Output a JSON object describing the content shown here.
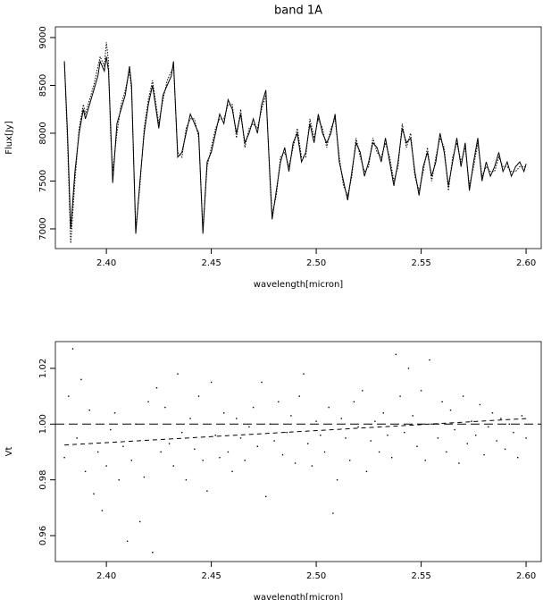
{
  "chart_data": [
    {
      "type": "line",
      "title": "band 1A",
      "xlabel": "wavelength[micron]",
      "ylabel": "Flux[Jy]",
      "xlim": [
        2.3757,
        2.6072
      ],
      "ylim": [
        6794,
        9112
      ],
      "xticks": [
        {
          "value": 2.4,
          "label": "2.40"
        },
        {
          "value": 2.45,
          "label": "2.45"
        },
        {
          "value": 2.5,
          "label": "2.50"
        },
        {
          "value": 2.55,
          "label": "2.55"
        },
        {
          "value": 2.6,
          "label": "2.60"
        }
      ],
      "yticks": [
        7000,
        7500,
        8000,
        8500,
        9000
      ],
      "x": [
        2.38,
        2.3815,
        2.383,
        2.385,
        2.387,
        2.389,
        2.39,
        2.392,
        2.394,
        2.396,
        2.397,
        2.399,
        2.4,
        2.401,
        2.402,
        2.403,
        2.405,
        2.407,
        2.409,
        2.411,
        2.412,
        2.414,
        2.416,
        2.418,
        2.42,
        2.422,
        2.424,
        2.425,
        2.427,
        2.429,
        2.431,
        2.432,
        2.434,
        2.436,
        2.438,
        2.44,
        2.442,
        2.444,
        2.446,
        2.448,
        2.45,
        2.452,
        2.454,
        2.456,
        2.458,
        2.46,
        2.462,
        2.464,
        2.466,
        2.468,
        2.47,
        2.472,
        2.474,
        2.476,
        2.478,
        2.479,
        2.481,
        2.483,
        2.485,
        2.487,
        2.489,
        2.491,
        2.493,
        2.495,
        2.497,
        2.499,
        2.501,
        2.503,
        2.505,
        2.507,
        2.509,
        2.511,
        2.513,
        2.515,
        2.517,
        2.519,
        2.521,
        2.523,
        2.525,
        2.527,
        2.529,
        2.531,
        2.533,
        2.535,
        2.537,
        2.539,
        2.541,
        2.543,
        2.545,
        2.547,
        2.549,
        2.551,
        2.553,
        2.555,
        2.557,
        2.559,
        2.561,
        2.563,
        2.565,
        2.567,
        2.569,
        2.571,
        2.573,
        2.575,
        2.577,
        2.579,
        2.581,
        2.583,
        2.585,
        2.587,
        2.589,
        2.591,
        2.593,
        2.595,
        2.597,
        2.599,
        2.6
      ],
      "series": [
        {
          "color": "#000000",
          "dash": "solid",
          "values": [
            8750,
            8000,
            7000,
            7600,
            8000,
            8250,
            8150,
            8300,
            8450,
            8600,
            8750,
            8650,
            8800,
            8650,
            8100,
            7480,
            8100,
            8250,
            8400,
            8700,
            8500,
            6950,
            7500,
            8000,
            8300,
            8500,
            8200,
            8050,
            8400,
            8500,
            8600,
            8750,
            7750,
            7800,
            8000,
            8200,
            8100,
            8000,
            6950,
            7700,
            7800,
            8000,
            8200,
            8100,
            8350,
            8250,
            8000,
            8200,
            7900,
            8000,
            8150,
            8000,
            8300,
            8450,
            7500,
            7100,
            7400,
            7700,
            7850,
            7600,
            7900,
            8000,
            7700,
            7800,
            8100,
            7900,
            8200,
            8000,
            7900,
            8000,
            8200,
            7700,
            7500,
            7300,
            7600,
            7900,
            7800,
            7550,
            7700,
            7900,
            7850,
            7700,
            7950,
            7700,
            7450,
            7700,
            8050,
            7900,
            7950,
            7600,
            7350,
            7650,
            7800,
            7550,
            7700,
            8000,
            7800,
            7450,
            7700,
            7950,
            7650,
            7900,
            7400,
            7700,
            7950,
            7500,
            7700,
            7550,
            7650,
            7800,
            7600,
            7700,
            7550,
            7650,
            7700,
            7600,
            7680
          ]
        },
        {
          "color": "#000000",
          "dash": "dotted",
          "values": [
            8750,
            7900,
            6850,
            7500,
            8050,
            8300,
            8200,
            8350,
            8500,
            8700,
            8800,
            8700,
            8950,
            8750,
            8000,
            7600,
            8000,
            8300,
            8450,
            8650,
            8450,
            7000,
            7450,
            8050,
            8350,
            8550,
            8250,
            8100,
            8350,
            8550,
            8650,
            8700,
            7800,
            7750,
            8050,
            8150,
            8150,
            7950,
            7000,
            7650,
            7850,
            8050,
            8150,
            8150,
            8300,
            8300,
            7950,
            8250,
            7850,
            8050,
            8100,
            8050,
            8250,
            8400,
            7550,
            7150,
            7350,
            7750,
            7800,
            7650,
            7850,
            8050,
            7750,
            7750,
            8150,
            7950,
            8150,
            8050,
            7850,
            8050,
            8150,
            7750,
            7450,
            7350,
            7550,
            7950,
            7750,
            7600,
            7650,
            7950,
            7800,
            7750,
            7900,
            7750,
            7500,
            7650,
            8100,
            7850,
            8000,
            7550,
            7400,
            7600,
            7850,
            7500,
            7750,
            7950,
            7850,
            7400,
            7750,
            7900,
            7700,
            7850,
            7450,
            7650,
            7900,
            7550,
            7650,
            7600,
            7600,
            7750,
            7650,
            7650,
            7600,
            7600,
            7650,
            7650,
            7650
          ]
        }
      ]
    },
    {
      "type": "scatter",
      "xlabel": "wavelength[micron]",
      "ylabel": "Vt",
      "xlim": [
        2.3757,
        2.6072
      ],
      "ylim": [
        0.9507,
        1.0296
      ],
      "xticks": [
        {
          "value": 2.4,
          "label": "2.40"
        },
        {
          "value": 2.45,
          "label": "2.45"
        },
        {
          "value": 2.5,
          "label": "2.50"
        },
        {
          "value": 2.55,
          "label": "2.55"
        },
        {
          "value": 2.6,
          "label": "2.60"
        }
      ],
      "yticks": [
        0.96,
        0.98,
        {
          "value": 1,
          "label": "1.00"
        },
        1.02
      ],
      "series": [
        {
          "type": "scatter",
          "color": "#000000",
          "x": [
            2.38,
            2.382,
            2.384,
            2.386,
            2.388,
            2.39,
            2.392,
            2.394,
            2.396,
            2.398,
            2.4,
            2.402,
            2.404,
            2.406,
            2.408,
            2.41,
            2.412,
            2.414,
            2.416,
            2.418,
            2.42,
            2.422,
            2.424,
            2.426,
            2.428,
            2.43,
            2.432,
            2.434,
            2.436,
            2.438,
            2.44,
            2.442,
            2.444,
            2.446,
            2.448,
            2.45,
            2.452,
            2.454,
            2.456,
            2.458,
            2.46,
            2.462,
            2.464,
            2.466,
            2.468,
            2.47,
            2.472,
            2.474,
            2.476,
            2.478,
            2.48,
            2.482,
            2.484,
            2.486,
            2.488,
            2.49,
            2.492,
            2.494,
            2.496,
            2.498,
            2.5,
            2.502,
            2.504,
            2.506,
            2.508,
            2.51,
            2.512,
            2.514,
            2.516,
            2.518,
            2.52,
            2.522,
            2.524,
            2.526,
            2.528,
            2.53,
            2.532,
            2.534,
            2.536,
            2.538,
            2.54,
            2.542,
            2.544,
            2.546,
            2.548,
            2.55,
            2.552,
            2.554,
            2.556,
            2.558,
            2.56,
            2.562,
            2.564,
            2.566,
            2.568,
            2.57,
            2.572,
            2.574,
            2.576,
            2.578,
            2.58,
            2.582,
            2.584,
            2.586,
            2.588,
            2.59,
            2.592,
            2.594,
            2.596,
            2.598,
            2.6
          ],
          "values": [
            0.988,
            1.01,
            1.027,
            0.995,
            1.016,
            0.983,
            1.005,
            0.975,
            0.99,
            0.969,
            0.985,
            0.998,
            1.004,
            0.98,
            0.992,
            0.958,
            0.987,
            1.0,
            0.965,
            0.981,
            1.008,
            0.954,
            1.013,
            0.99,
            1.006,
            0.993,
            0.985,
            1.018,
            0.997,
            0.98,
            1.002,
            0.991,
            1.01,
            0.987,
            0.976,
            1.015,
            0.996,
            0.988,
            1.004,
            0.99,
            0.983,
            1.002,
            0.995,
            0.987,
            0.999,
            1.006,
            0.992,
            1.015,
            0.974,
            1.0,
            0.994,
            1.008,
            0.989,
            0.997,
            1.003,
            0.986,
            1.01,
            1.018,
            0.993,
            0.985,
            1.001,
            0.996,
            0.99,
            1.006,
            0.968,
            0.98,
            1.002,
            0.995,
            0.987,
            1.008,
            0.999,
            1.012,
            0.983,
            0.994,
            1.001,
            0.99,
            1.004,
            0.996,
            0.988,
            1.025,
            1.01,
            0.997,
            1.02,
            1.003,
            0.992,
            1.012,
            0.987,
            1.023,
            1.0,
            0.995,
            1.008,
            0.99,
            1.005,
            0.998,
            0.986,
            1.01,
            0.993,
            1.001,
            0.996,
            1.007,
            0.989,
            0.999,
            1.004,
            0.994,
            1.002,
            0.991,
            1.0,
            0.997,
            0.988,
            1.003,
            0.995
          ]
        },
        {
          "type": "line",
          "color": "#000000",
          "dash": "longdash",
          "x": [
            2.3757,
            2.6072
          ],
          "values": [
            1,
            1
          ]
        },
        {
          "type": "line",
          "color": "#000000",
          "dash": "dashed",
          "x": [
            2.38,
            2.6
          ],
          "values": [
            0.9925,
            1.002
          ]
        }
      ]
    }
  ]
}
